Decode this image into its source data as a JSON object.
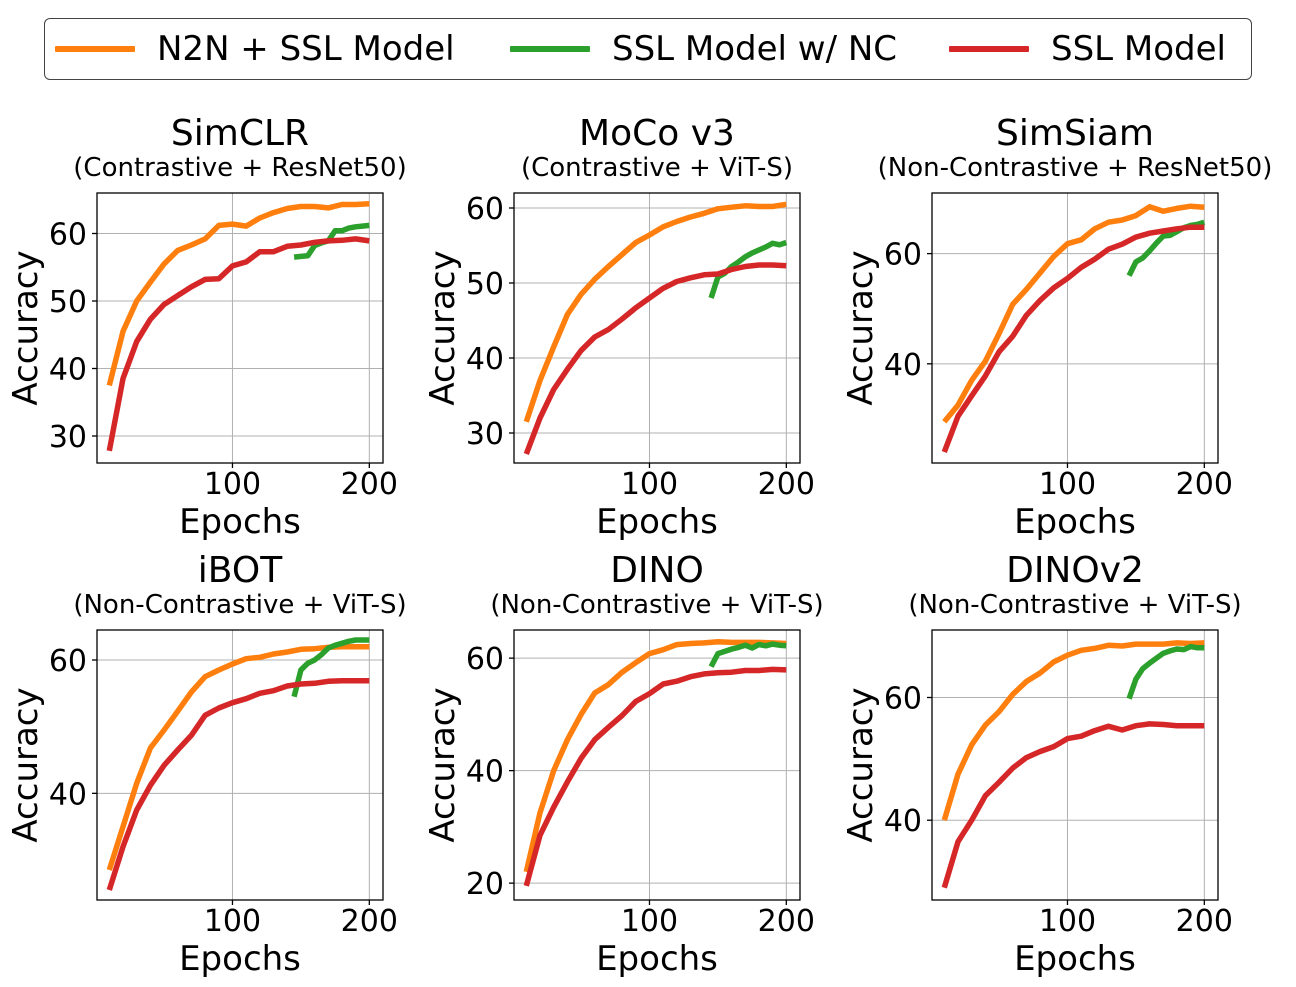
{
  "legend": [
    {
      "label": "N2N + SSL Model",
      "color": "#ff7f0e"
    },
    {
      "label": "SSL Model w/ NC",
      "color": "#2ca02c"
    },
    {
      "label": "SSL Model",
      "color": "#d62728"
    }
  ],
  "chart_data": [
    {
      "type": "line",
      "title": "SimCLR",
      "subtitle": "(Contrastive + ResNet50)",
      "xlabel": "Epochs",
      "ylabel": "Accuracy",
      "xlim": [
        1,
        210
      ],
      "ylim": [
        26,
        66
      ],
      "xticks": [
        100,
        200
      ],
      "yticks": [
        30,
        40,
        50,
        60
      ],
      "grid": true,
      "series": [
        {
          "name": "N2N + SSL Model",
          "color": "#ff7f0e",
          "x": [
            10,
            20,
            30,
            40,
            50,
            60,
            70,
            80,
            90,
            100,
            110,
            120,
            130,
            140,
            150,
            160,
            170,
            180,
            190,
            200
          ],
          "y": [
            37.5,
            45.5,
            50,
            52.8,
            55.5,
            57.5,
            58.3,
            59.2,
            61.2,
            61.4,
            61.1,
            62.3,
            63.1,
            63.7,
            64,
            64,
            63.8,
            64.3,
            64.3,
            64.4
          ]
        },
        {
          "name": "SSL Model w/ NC",
          "color": "#2ca02c",
          "x": [
            145,
            150,
            155,
            160,
            165,
            170,
            175,
            180,
            185,
            190,
            195,
            200
          ],
          "y": [
            56.5,
            56.6,
            56.7,
            58.2,
            58.6,
            58.9,
            60.4,
            60.4,
            60.8,
            61.0,
            61.1,
            61.2
          ]
        },
        {
          "name": "SSL Model",
          "color": "#d62728",
          "x": [
            10,
            20,
            30,
            40,
            50,
            60,
            70,
            80,
            90,
            100,
            110,
            120,
            130,
            140,
            150,
            160,
            170,
            180,
            190,
            200
          ],
          "y": [
            27.8,
            38.5,
            44,
            47.3,
            49.5,
            50.8,
            52.1,
            53.2,
            53.3,
            55.2,
            55.8,
            57.3,
            57.3,
            58.1,
            58.3,
            58.7,
            58.9,
            59.0,
            59.2,
            58.9
          ]
        }
      ]
    },
    {
      "type": "line",
      "title": "MoCo v3",
      "subtitle": "(Contrastive + ViT-S)",
      "xlabel": "Epochs",
      "ylabel": "Accuracy",
      "xlim": [
        1,
        210
      ],
      "ylim": [
        26,
        62
      ],
      "xticks": [
        100,
        200
      ],
      "yticks": [
        30,
        40,
        50,
        60
      ],
      "grid": true,
      "series": [
        {
          "name": "N2N + SSL Model",
          "color": "#ff7f0e",
          "x": [
            10,
            20,
            30,
            40,
            50,
            60,
            70,
            80,
            90,
            100,
            110,
            120,
            130,
            140,
            150,
            160,
            170,
            180,
            190,
            200
          ],
          "y": [
            31.5,
            37,
            41.5,
            45.8,
            48.5,
            50.5,
            52.2,
            53.8,
            55.4,
            56.4,
            57.5,
            58.2,
            58.8,
            59.3,
            59.9,
            60.1,
            60.3,
            60.2,
            60.2,
            60.5
          ]
        },
        {
          "name": "SSL Model w/ NC",
          "color": "#2ca02c",
          "x": [
            145,
            150,
            155,
            160,
            165,
            170,
            175,
            180,
            185,
            190,
            195,
            200
          ],
          "y": [
            48,
            50.8,
            51.3,
            52.2,
            52.8,
            53.5,
            54,
            54.4,
            54.8,
            55.3,
            55.1,
            55.4
          ]
        },
        {
          "name": "SSL Model",
          "color": "#d62728",
          "x": [
            10,
            20,
            30,
            40,
            50,
            60,
            70,
            80,
            90,
            100,
            110,
            120,
            130,
            140,
            150,
            160,
            170,
            180,
            190,
            200
          ],
          "y": [
            27.2,
            32,
            35.8,
            38.5,
            41,
            42.8,
            43.8,
            45.2,
            46.7,
            48,
            49.3,
            50.2,
            50.7,
            51.1,
            51.2,
            51.8,
            52.2,
            52.4,
            52.4,
            52.3
          ]
        }
      ]
    },
    {
      "type": "line",
      "title": "SimSiam",
      "subtitle": "(Non-Contrastive + ResNet50)",
      "xlabel": "Epochs",
      "ylabel": "Accuracy",
      "xlim": [
        1,
        210
      ],
      "ylim": [
        22,
        71
      ],
      "xticks": [
        100,
        200
      ],
      "yticks": [
        40,
        60
      ],
      "grid": true,
      "series": [
        {
          "name": "N2N + SSL Model",
          "color": "#ff7f0e",
          "x": [
            10,
            20,
            30,
            40,
            50,
            60,
            70,
            80,
            90,
            100,
            110,
            120,
            130,
            140,
            150,
            160,
            170,
            180,
            190,
            200
          ],
          "y": [
            29.5,
            32.5,
            37,
            40.5,
            45.5,
            50.8,
            53.5,
            56.5,
            59.5,
            61.8,
            62.5,
            64.5,
            65.7,
            66.1,
            66.9,
            68.5,
            67.7,
            68.2,
            68.6,
            68.4
          ]
        },
        {
          "name": "SSL Model w/ NC",
          "color": "#2ca02c",
          "x": [
            145,
            150,
            155,
            160,
            165,
            170,
            175,
            180,
            185,
            190,
            195,
            200
          ],
          "y": [
            56,
            58.5,
            59.2,
            60.5,
            61.9,
            63.2,
            63.3,
            64,
            64.7,
            65.1,
            65.3,
            65.7
          ]
        },
        {
          "name": "SSL Model",
          "color": "#d62728",
          "x": [
            10,
            20,
            30,
            40,
            50,
            60,
            70,
            80,
            90,
            100,
            110,
            120,
            130,
            140,
            150,
            160,
            170,
            180,
            190,
            200
          ],
          "y": [
            24,
            30.5,
            34.2,
            37.8,
            42.2,
            45,
            48.8,
            51.5,
            53.8,
            55.5,
            57.5,
            59,
            60.8,
            61.7,
            63,
            63.7,
            64.1,
            64.5,
            64.8,
            64.8
          ]
        }
      ]
    },
    {
      "type": "line",
      "title": "iBOT",
      "subtitle": "(Non-Contrastive + ViT-S)",
      "xlabel": "Epochs",
      "ylabel": "Accuracy",
      "xlim": [
        1,
        210
      ],
      "ylim": [
        24,
        64.5
      ],
      "xticks": [
        100,
        200
      ],
      "yticks": [
        40,
        60
      ],
      "grid": true,
      "series": [
        {
          "name": "N2N + SSL Model",
          "color": "#ff7f0e",
          "x": [
            10,
            20,
            30,
            40,
            50,
            60,
            70,
            80,
            90,
            100,
            110,
            120,
            130,
            140,
            150,
            160,
            170,
            180,
            190,
            200
          ],
          "y": [
            28.5,
            35,
            41.5,
            46.8,
            49.5,
            52.3,
            55.2,
            57.5,
            58.5,
            59.4,
            60.2,
            60.4,
            60.9,
            61.2,
            61.6,
            61.7,
            61.9,
            62.0,
            62.0,
            62.0
          ]
        },
        {
          "name": "SSL Model w/ NC",
          "color": "#2ca02c",
          "x": [
            145,
            150,
            155,
            160,
            165,
            170,
            175,
            180,
            185,
            190,
            195,
            200
          ],
          "y": [
            54.5,
            58.5,
            59.5,
            60,
            60.8,
            61.8,
            62.2,
            62.5,
            62.8,
            63,
            63,
            63
          ]
        },
        {
          "name": "SSL Model",
          "color": "#d62728",
          "x": [
            10,
            20,
            30,
            40,
            50,
            60,
            70,
            80,
            90,
            100,
            110,
            120,
            130,
            140,
            150,
            160,
            170,
            180,
            190,
            200
          ],
          "y": [
            25.5,
            32,
            37.5,
            41.2,
            44.2,
            46.5,
            48.7,
            51.7,
            52.8,
            53.6,
            54.2,
            55,
            55.4,
            56.1,
            56.4,
            56.5,
            56.8,
            56.9,
            56.9,
            56.9
          ]
        }
      ]
    },
    {
      "type": "line",
      "title": "DINO",
      "subtitle": "(Non-Contrastive + ViT-S)",
      "xlabel": "Epochs",
      "ylabel": "Accuracy",
      "xlim": [
        1,
        210
      ],
      "ylim": [
        17,
        65
      ],
      "xticks": [
        100,
        200
      ],
      "yticks": [
        20,
        40,
        60
      ],
      "grid": true,
      "series": [
        {
          "name": "N2N + SSL Model",
          "color": "#ff7f0e",
          "x": [
            10,
            20,
            30,
            40,
            50,
            60,
            70,
            80,
            90,
            100,
            110,
            120,
            130,
            140,
            150,
            160,
            170,
            180,
            190,
            200
          ],
          "y": [
            22,
            32.5,
            40,
            45.5,
            50,
            53.8,
            55.3,
            57.5,
            59.2,
            60.8,
            61.5,
            62.4,
            62.6,
            62.7,
            62.9,
            62.8,
            62.8,
            62.8,
            62.7,
            62.6
          ]
        },
        {
          "name": "SSL Model w/ NC",
          "color": "#2ca02c",
          "x": [
            145,
            150,
            155,
            160,
            165,
            170,
            175,
            180,
            185,
            190,
            195,
            200
          ],
          "y": [
            58.5,
            60.8,
            61.2,
            61.6,
            61.9,
            62.3,
            61.8,
            62.4,
            62.2,
            62.5,
            62.3,
            62.2
          ]
        },
        {
          "name": "SSL Model",
          "color": "#d62728",
          "x": [
            10,
            20,
            30,
            40,
            50,
            60,
            70,
            80,
            90,
            100,
            110,
            120,
            130,
            140,
            150,
            160,
            170,
            180,
            190,
            200
          ],
          "y": [
            19.5,
            28.5,
            33.5,
            38,
            42.2,
            45.5,
            47.7,
            49.8,
            52.3,
            53.7,
            55.4,
            55.9,
            56.7,
            57.2,
            57.4,
            57.5,
            57.8,
            57.8,
            58,
            57.9
          ]
        }
      ]
    },
    {
      "type": "line",
      "title": "DINOv2",
      "subtitle": "(Non-Contrastive + ViT-S)",
      "xlabel": "Epochs",
      "ylabel": "Accuracy",
      "xlim": [
        1,
        210
      ],
      "ylim": [
        27,
        71
      ],
      "xticks": [
        100,
        200
      ],
      "yticks": [
        40,
        60
      ],
      "grid": true,
      "series": [
        {
          "name": "N2N + SSL Model",
          "color": "#ff7f0e",
          "x": [
            10,
            20,
            30,
            40,
            50,
            60,
            70,
            80,
            90,
            100,
            110,
            120,
            130,
            140,
            150,
            160,
            170,
            180,
            190,
            200
          ],
          "y": [
            40,
            47.5,
            52.3,
            55.5,
            57.7,
            60.5,
            62.6,
            64,
            65.8,
            66.9,
            67.7,
            68,
            68.5,
            68.4,
            68.7,
            68.7,
            68.7,
            68.9,
            68.8,
            68.9
          ]
        },
        {
          "name": "SSL Model w/ NC",
          "color": "#2ca02c",
          "x": [
            145,
            150,
            155,
            160,
            165,
            170,
            175,
            180,
            185,
            190,
            195,
            200
          ],
          "y": [
            59.8,
            63,
            64.7,
            65.6,
            66.4,
            67.2,
            67.6,
            67.9,
            67.8,
            68.3,
            68.1,
            68.1
          ]
        },
        {
          "name": "SSL Model",
          "color": "#d62728",
          "x": [
            10,
            20,
            30,
            40,
            50,
            60,
            70,
            80,
            90,
            100,
            110,
            120,
            130,
            140,
            150,
            160,
            170,
            180,
            190,
            200
          ],
          "y": [
            29,
            36.5,
            40,
            44,
            46.2,
            48.5,
            50.2,
            51.2,
            52,
            53.3,
            53.7,
            54.6,
            55.3,
            54.7,
            55.4,
            55.7,
            55.6,
            55.4,
            55.4,
            55.4
          ]
        }
      ]
    }
  ]
}
